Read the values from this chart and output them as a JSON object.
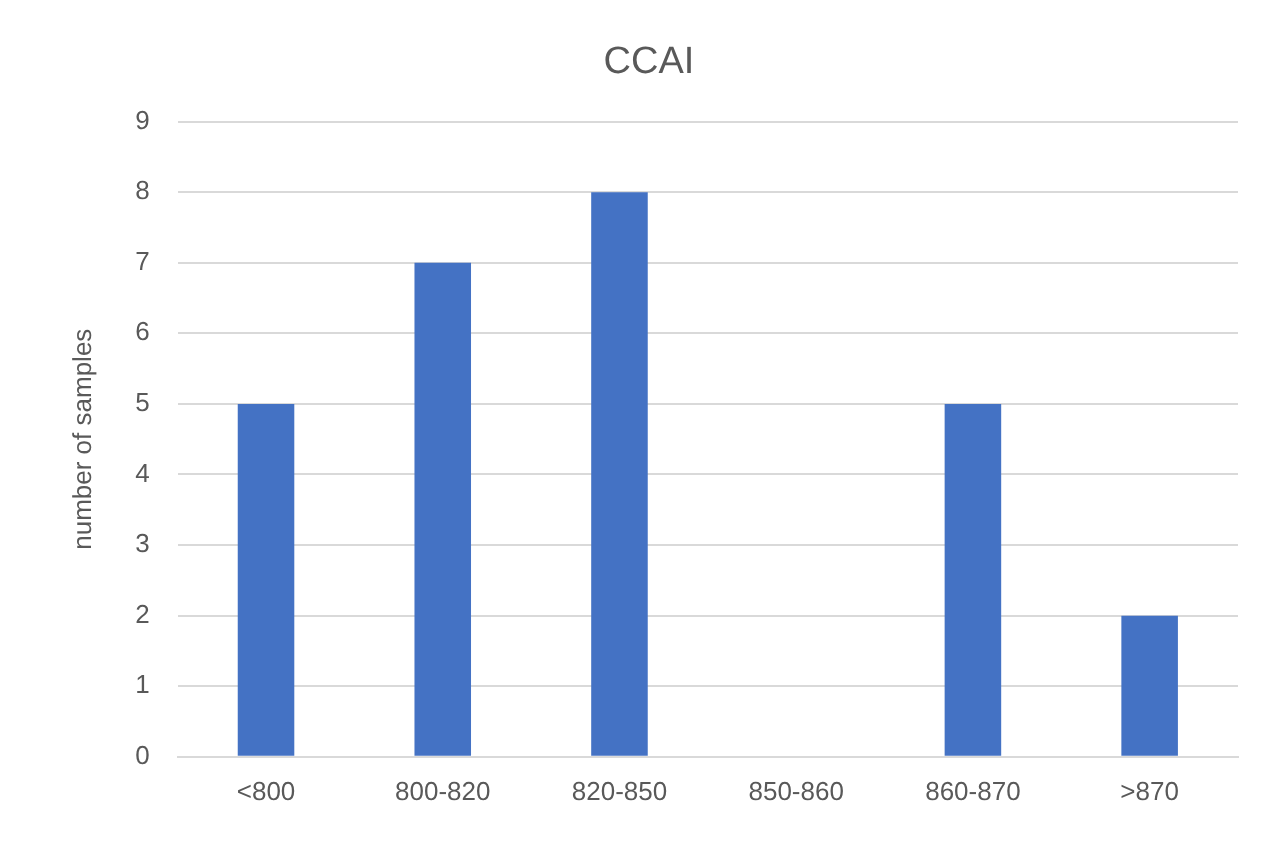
{
  "chart_data": {
    "type": "bar",
    "title": "CCAI",
    "ylabel": "number of samples",
    "categories": [
      "<800",
      "800-820",
      "820-850",
      "850-860",
      "860-870",
      ">870"
    ],
    "values": [
      5,
      7,
      8,
      0,
      5,
      2
    ],
    "color": "#4472c4",
    "ylim": [
      0,
      9
    ],
    "yticks": [
      0,
      1,
      2,
      3,
      4,
      5,
      6,
      7,
      8,
      9
    ],
    "grid": "y",
    "legend": false
  }
}
